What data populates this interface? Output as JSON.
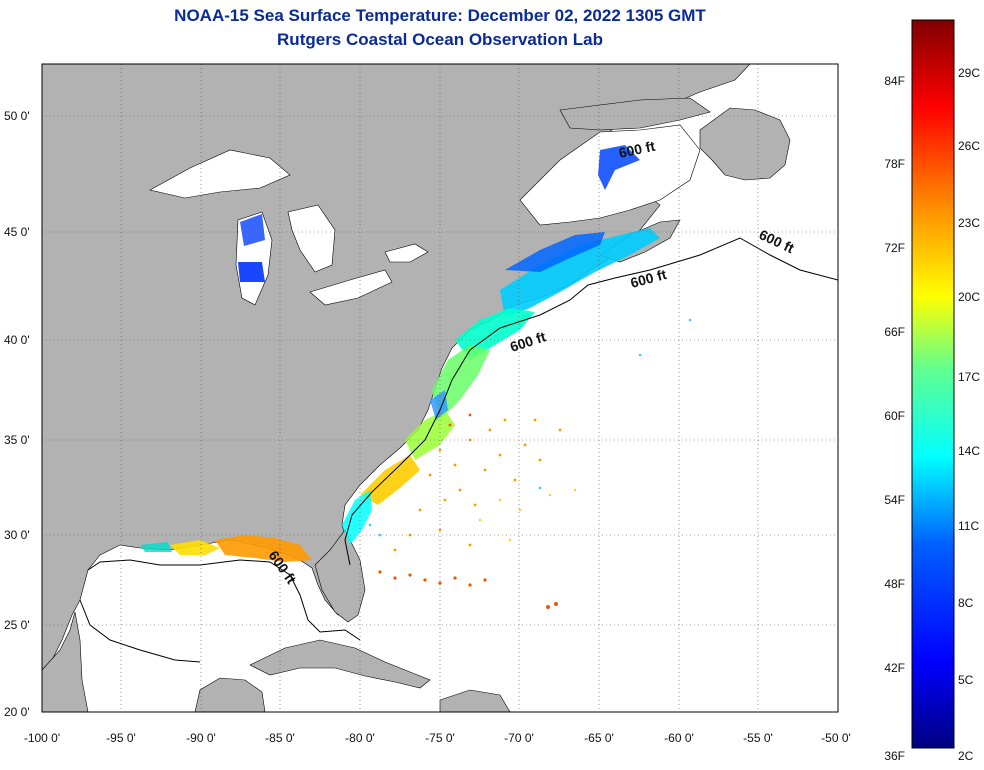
{
  "title": "NOAA-15 Sea Surface Temperature:  December 02, 2022 1305 GMT",
  "subtitle": "Rutgers Coastal Ocean Observation Lab",
  "map": {
    "lon_range": [
      -100,
      -50
    ],
    "lat_range": [
      20,
      52.5
    ],
    "lon_ticks": [
      -100,
      -95,
      -90,
      -85,
      -80,
      -75,
      -70,
      -65,
      -60,
      -55,
      -50
    ],
    "lat_ticks": [
      20,
      25,
      30,
      35,
      40,
      45,
      50
    ],
    "lon_tick_labels": [
      "-100 0'",
      "-95 0'",
      "-90 0'",
      "-85 0'",
      "-80 0'",
      "-75 0'",
      "-70 0'",
      "-65 0'",
      "-60 0'",
      "-55 0'",
      "-50 0'"
    ],
    "lat_tick_labels": [
      "20 0'",
      "25 0'",
      "30 0'",
      "35 0'",
      "40 0'",
      "45 0'",
      "50 0'"
    ],
    "gridlines": true,
    "land_color": "#b2b2b2",
    "ocean_color": "#ffffff",
    "isobath_labels": [
      "600 ft",
      "600 ft",
      "600 ft",
      "600 ft",
      "600 ft"
    ]
  },
  "colorbar": {
    "fahrenheit_labels": [
      "84F",
      "78F",
      "72F",
      "66F",
      "60F",
      "54F",
      "48F",
      "42F",
      "36F"
    ],
    "fahrenheit_values": [
      84,
      78,
      72,
      66,
      60,
      54,
      48,
      42,
      36
    ],
    "celsius_labels": [
      "29C",
      "26C",
      "23C",
      "20C",
      "17C",
      "14C",
      "11C",
      "8C",
      "5C",
      "2C"
    ],
    "celsius_values": [
      29,
      26,
      23,
      20,
      17,
      14,
      11,
      8,
      5,
      2
    ],
    "range_f": [
      36,
      88
    ],
    "colors": [
      "#000080",
      "#0000ff",
      "#0080ff",
      "#00ffff",
      "#80ff80",
      "#ffff00",
      "#ff8000",
      "#ff0000",
      "#800000"
    ]
  }
}
